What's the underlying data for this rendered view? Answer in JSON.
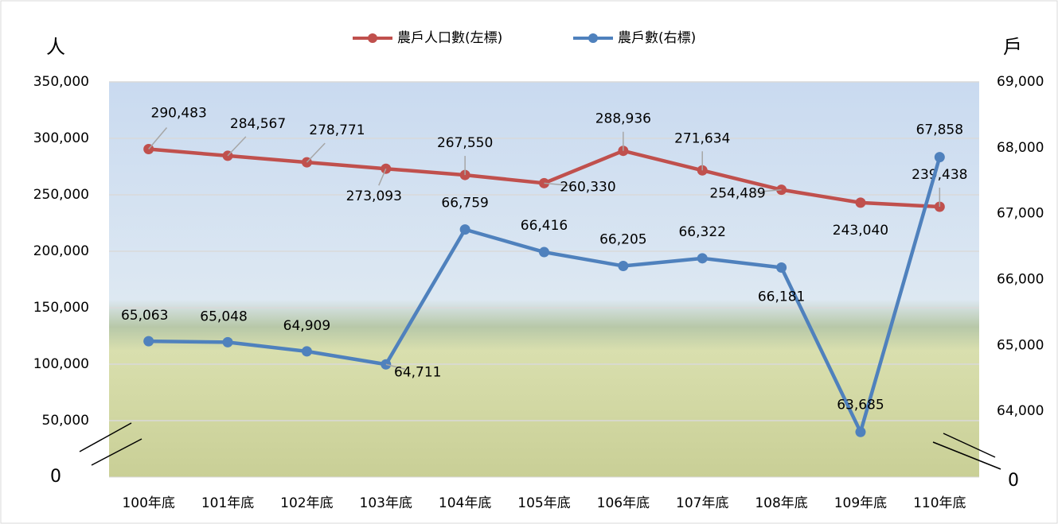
{
  "chart_data": {
    "type": "line",
    "y_title": "人",
    "y2_title": "戶",
    "categories": [
      "100年底",
      "101年底",
      "102年底",
      "103年底",
      "104年底",
      "105年底",
      "106年底",
      "107年底",
      "108年底",
      "109年底",
      "110年底"
    ],
    "series": [
      {
        "name": "農戶人口數(左標)",
        "color": "#c0504d",
        "axis": "y",
        "values": [
          290483,
          284567,
          278771,
          273093,
          267550,
          260330,
          288936,
          271634,
          254489,
          243040,
          239438
        ],
        "value_labels": [
          "290,483",
          "284,567",
          "278,771",
          "273,093",
          "267,550",
          "260,330",
          "288,936",
          "271,634",
          "254,489",
          "243,040",
          "239,438"
        ]
      },
      {
        "name": "農戶數(右標)",
        "color": "#4f81bd",
        "axis": "y2",
        "values": [
          65063,
          65048,
          64909,
          64711,
          66759,
          66416,
          66205,
          66322,
          66181,
          63685,
          67858
        ],
        "value_labels": [
          "65,063",
          "65,048",
          "64,909",
          "64,711",
          "66,759",
          "66,416",
          "66,205",
          "66,322",
          "66,181",
          "63,685",
          "67,858"
        ]
      }
    ],
    "ylim": [
      0,
      350000
    ],
    "yticks": [
      0,
      {
        "value": 50000,
        "label": "50,000"
      },
      {
        "value": 100000,
        "label": "100,000"
      },
      {
        "value": 150000,
        "label": "150,000"
      },
      {
        "value": 200000,
        "label": "200,000"
      },
      {
        "value": 250000,
        "label": "250,000"
      },
      {
        "value": 300000,
        "label": "300,000"
      },
      {
        "value": 350000,
        "label": "350,000"
      }
    ],
    "y2lim": [
      63000,
      69000
    ],
    "y2ticks": [
      {
        "value": 64000,
        "label": "64,000"
      },
      {
        "value": 65000,
        "label": "65,000"
      },
      {
        "value": 66000,
        "label": "66,000"
      },
      {
        "value": 67000,
        "label": "67,000"
      },
      {
        "value": 68000,
        "label": "68,000"
      },
      {
        "value": 69000,
        "label": "69,000"
      }
    ],
    "y2_axis_break_label": "0",
    "grid": true,
    "legend": "top"
  }
}
